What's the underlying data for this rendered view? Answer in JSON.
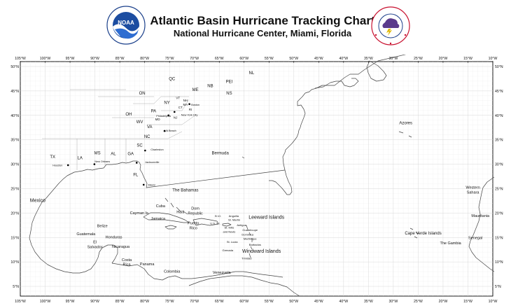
{
  "header": {
    "title": "Atlantic Basin Hurricane Tracking Chart",
    "subtitle": "National Hurricane Center, Miami, Florida",
    "noaa_logo_text": "NOAA",
    "noaa_ring_text": "NATIONAL OCEANIC AND ATMOSPHERIC ADMINISTRATION · U.S. DEPARTMENT OF COMMERCE",
    "nws_ring_text": "NATIONAL WEATHER SERVICE"
  },
  "map": {
    "lon_min": -105,
    "lon_max": -10,
    "lat_min": 3,
    "lat_max": 51,
    "lon_ticks": [
      "105°W",
      "100°W",
      "95°W",
      "90°W",
      "85°W",
      "80°W",
      "75°W",
      "70°W",
      "65°W",
      "60°W",
      "55°W",
      "50°W",
      "45°W",
      "40°W",
      "35°W",
      "30°W",
      "25°W",
      "20°W",
      "15°W",
      "10°W"
    ],
    "lat_ticks_left": [
      "50°N",
      "45°N",
      "40°N",
      "35°N",
      "30°N",
      "25°N",
      "20°N",
      "15°N",
      "10°N",
      "5°N"
    ],
    "lat_ticks_right": [
      "50°N",
      "45°N",
      "40°N",
      "35°N",
      "30°N",
      "25°N",
      "20°N",
      "15°N",
      "10°N",
      "5°N"
    ],
    "colors": {
      "land_outline": "#444444",
      "grid": "#d8d8d8",
      "frame": "#000000"
    }
  },
  "labels": [
    {
      "text": "NL",
      "lon": -58.5,
      "lat": 48.4,
      "size": 6
    },
    {
      "text": "QC",
      "lon": -74.5,
      "lat": 47.2,
      "size": 6
    },
    {
      "text": "PEI",
      "lon": -63.0,
      "lat": 46.6,
      "size": 6
    },
    {
      "text": "NB",
      "lon": -66.8,
      "lat": 45.8,
      "size": 6
    },
    {
      "text": "ME",
      "lon": -69.8,
      "lat": 45.0,
      "size": 6
    },
    {
      "text": "NS",
      "lon": -63.0,
      "lat": 44.3,
      "size": 6
    },
    {
      "text": "ON",
      "lon": -80.5,
      "lat": 44.3,
      "size": 6
    },
    {
      "text": "VT",
      "lon": -73.3,
      "lat": 43.3,
      "size": 4.5
    },
    {
      "text": "NH",
      "lon": -71.8,
      "lat": 42.8,
      "size": 4.5
    },
    {
      "text": "NY",
      "lon": -75.5,
      "lat": 42.3,
      "size": 6
    },
    {
      "text": "MA",
      "lon": -71.8,
      "lat": 42.0,
      "size": 4.5
    },
    {
      "text": "Boston",
      "lon": -69.8,
      "lat": 42.0,
      "size": 3.8
    },
    {
      "text": "CT",
      "lon": -72.8,
      "lat": 41.4,
      "size": 4.5
    },
    {
      "text": "RI",
      "lon": -70.8,
      "lat": 41.0,
      "size": 4.5
    },
    {
      "text": "PA",
      "lon": -78.2,
      "lat": 40.6,
      "size": 6
    },
    {
      "text": "OH",
      "lon": -83.2,
      "lat": 40.0,
      "size": 6
    },
    {
      "text": "Philadelphia",
      "lon": -76.2,
      "lat": 39.7,
      "size": 3.8
    },
    {
      "text": "New York City",
      "lon": -71.0,
      "lat": 39.9,
      "size": 3.8
    },
    {
      "text": "MD",
      "lon": -77.4,
      "lat": 39.0,
      "size": 4.5
    },
    {
      "text": "NJ",
      "lon": -73.8,
      "lat": 39.3,
      "size": 4.5
    },
    {
      "text": "WV",
      "lon": -81.0,
      "lat": 38.4,
      "size": 6
    },
    {
      "text": "VA",
      "lon": -79.0,
      "lat": 37.4,
      "size": 6
    },
    {
      "text": "VA Beach",
      "lon": -74.8,
      "lat": 36.7,
      "size": 3.8
    },
    {
      "text": "NC",
      "lon": -79.5,
      "lat": 35.4,
      "size": 6
    },
    {
      "text": "SC",
      "lon": -81.0,
      "lat": 33.6,
      "size": 6
    },
    {
      "text": "Charleston",
      "lon": -77.5,
      "lat": 32.8,
      "size": 3.8
    },
    {
      "text": "Bermuda",
      "lon": -64.8,
      "lat": 32.0,
      "size": 6
    },
    {
      "text": "MS",
      "lon": -89.5,
      "lat": 32.0,
      "size": 6
    },
    {
      "text": "AL",
      "lon": -86.3,
      "lat": 31.9,
      "size": 6
    },
    {
      "text": "GA",
      "lon": -82.8,
      "lat": 31.9,
      "size": 6
    },
    {
      "text": "TX",
      "lon": -98.5,
      "lat": 31.2,
      "size": 6
    },
    {
      "text": "LA",
      "lon": -93.0,
      "lat": 31.0,
      "size": 6
    },
    {
      "text": "New Orleans",
      "lon": -88.5,
      "lat": 30.4,
      "size": 3.8
    },
    {
      "text": "Jacksonville",
      "lon": -78.5,
      "lat": 30.2,
      "size": 3.8
    },
    {
      "text": "Houston",
      "lon": -97.5,
      "lat": 29.6,
      "size": 3.8
    },
    {
      "text": "FL",
      "lon": -81.8,
      "lat": 27.6,
      "size": 6
    },
    {
      "text": "Miami",
      "lon": -78.6,
      "lat": 25.6,
      "size": 3.8
    },
    {
      "text": "The Bahamas",
      "lon": -71.8,
      "lat": 24.4,
      "size": 6
    },
    {
      "text": "Azores",
      "lon": -27.5,
      "lat": 38.2,
      "size": 6
    },
    {
      "text": "Mexico",
      "lon": -101.5,
      "lat": 22.3,
      "size": 7
    },
    {
      "text": "Cuba",
      "lon": -76.8,
      "lat": 21.2,
      "size": 5.5
    },
    {
      "text": "Dom",
      "lon": -69.8,
      "lat": 20.7,
      "size": 5.5
    },
    {
      "text": "Republic",
      "lon": -69.8,
      "lat": 19.7,
      "size": 5.5
    },
    {
      "text": "Haiti",
      "lon": -72.8,
      "lat": 20.0,
      "size": 5.5
    },
    {
      "text": "Cayman Is.",
      "lon": -81.0,
      "lat": 19.8,
      "size": 5.5
    },
    {
      "text": "B.V.I.",
      "lon": -65.2,
      "lat": 19.2,
      "size": 4
    },
    {
      "text": "Anguilla",
      "lon": -62.1,
      "lat": 19.2,
      "size": 4
    },
    {
      "text": "St. Martin",
      "lon": -62.0,
      "lat": 18.4,
      "size": 4
    },
    {
      "text": "Leeward Islands",
      "lon": -55.5,
      "lat": 18.8,
      "size": 7
    },
    {
      "text": "Jamaica",
      "lon": -77.3,
      "lat": 18.6,
      "size": 5.5
    },
    {
      "text": "Puerto",
      "lon": -70.2,
      "lat": 17.7,
      "size": 5.5
    },
    {
      "text": "Rico",
      "lon": -70.2,
      "lat": 16.7,
      "size": 5.5
    },
    {
      "text": "U.S. V.I.",
      "lon": -65.8,
      "lat": 17.7,
      "size": 4
    },
    {
      "text": "Antigua",
      "lon": -60.5,
      "lat": 17.3,
      "size": 4
    },
    {
      "text": "St. Kitts",
      "lon": -63.0,
      "lat": 16.8,
      "size": 4
    },
    {
      "text": "and Nevis",
      "lon": -63.0,
      "lat": 16.0,
      "size": 4
    },
    {
      "text": "Guadeloupe",
      "lon": -58.8,
      "lat": 16.3,
      "size": 4
    },
    {
      "text": "Belize",
      "lon": -88.5,
      "lat": 17.1,
      "size": 5.5
    },
    {
      "text": "Dominica",
      "lon": -59.3,
      "lat": 15.4,
      "size": 4
    },
    {
      "text": "Guatemala",
      "lon": -91.8,
      "lat": 15.5,
      "size": 5.5
    },
    {
      "text": "Honduras",
      "lon": -86.2,
      "lat": 14.8,
      "size": 5.5
    },
    {
      "text": "Martinique",
      "lon": -58.8,
      "lat": 14.5,
      "size": 4
    },
    {
      "text": "Cape Verde Islands",
      "lon": -24.0,
      "lat": 15.6,
      "size": 6
    },
    {
      "text": "El",
      "lon": -90.0,
      "lat": 13.8,
      "size": 5.5
    },
    {
      "text": "Salvador",
      "lon": -90.0,
      "lat": 12.8,
      "size": 5.5
    },
    {
      "text": "St. Lucia",
      "lon": -62.4,
      "lat": 13.9,
      "size": 4
    },
    {
      "text": "Barbados",
      "lon": -57.8,
      "lat": 13.3,
      "size": 4
    },
    {
      "text": "Nicaragua",
      "lon": -84.8,
      "lat": 12.9,
      "size": 5.5
    },
    {
      "text": "Grenada",
      "lon": -63.3,
      "lat": 12.2,
      "size": 4
    },
    {
      "text": "Windward Islands",
      "lon": -56.5,
      "lat": 11.9,
      "size": 7
    },
    {
      "text": "Trinidad",
      "lon": -59.5,
      "lat": 10.5,
      "size": 4
    },
    {
      "text": "Costa",
      "lon": -83.6,
      "lat": 10.2,
      "size": 5.5
    },
    {
      "text": "Rica",
      "lon": -83.6,
      "lat": 9.2,
      "size": 5.5
    },
    {
      "text": "Panama",
      "lon": -79.5,
      "lat": 9.3,
      "size": 5.5
    },
    {
      "text": "Colombia",
      "lon": -74.5,
      "lat": 7.8,
      "size": 5.5
    },
    {
      "text": "Venezuela",
      "lon": -64.5,
      "lat": 7.6,
      "size": 5.5
    },
    {
      "text": "Western",
      "lon": -14.0,
      "lat": 25.0,
      "size": 5.5
    },
    {
      "text": "Sahara",
      "lon": -14.0,
      "lat": 24.0,
      "size": 5.5
    },
    {
      "text": "Mauritania",
      "lon": -12.5,
      "lat": 19.2,
      "size": 5.5
    },
    {
      "text": "Senegal",
      "lon": -13.5,
      "lat": 14.7,
      "size": 5.5
    },
    {
      "text": "The Gambia",
      "lon": -18.5,
      "lat": 13.6,
      "size": 5.5
    },
    {
      "text": "NL",
      "lon": -58.5,
      "lat": 48.4,
      "size": 0
    }
  ],
  "cities": [
    {
      "name": "Boston",
      "lon": -71.0,
      "lat": 42.3
    },
    {
      "name": "New York City",
      "lon": -74.0,
      "lat": 40.7
    },
    {
      "name": "Philadelphia",
      "lon": -75.2,
      "lat": 40.0
    },
    {
      "name": "VA Beach",
      "lon": -76.0,
      "lat": 36.8
    },
    {
      "name": "Charleston",
      "lon": -79.9,
      "lat": 32.8
    },
    {
      "name": "Jacksonville",
      "lon": -81.6,
      "lat": 30.3
    },
    {
      "name": "Miami",
      "lon": -80.2,
      "lat": 25.8
    },
    {
      "name": "New Orleans",
      "lon": -90.1,
      "lat": 30.0
    },
    {
      "name": "Houston",
      "lon": -95.4,
      "lat": 29.8
    }
  ]
}
